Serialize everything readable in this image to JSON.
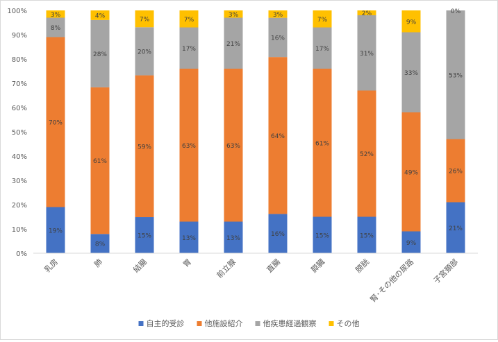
{
  "chart_data": {
    "type": "bar",
    "stacked": "percent",
    "categories": [
      "乳房",
      "肺",
      "結腸",
      "胃",
      "前立腺",
      "直腸",
      "膵臓",
      "膀胱",
      "腎･その他の尿路",
      "子宮頚部"
    ],
    "series": [
      {
        "name": "自主的受診",
        "color": "#4472c4",
        "values": [
          19,
          8,
          15,
          13,
          13,
          16,
          15,
          15,
          9,
          21
        ],
        "labels": [
          "19%",
          "8%",
          "15%",
          "13%",
          "13%",
          "16%",
          "15%",
          "15%",
          "9%",
          "21%"
        ]
      },
      {
        "name": "他施設紹介",
        "color": "#ed7d31",
        "values": [
          70,
          61,
          59,
          63,
          63,
          64,
          61,
          52,
          49,
          26
        ],
        "labels": [
          "70%",
          "61%",
          "59%",
          "63%",
          "63%",
          "64%",
          "61%",
          "52%",
          "49%",
          "26%"
        ]
      },
      {
        "name": "他疾患経過観察",
        "color": "#a5a5a5",
        "values": [
          8,
          28,
          20,
          17,
          21,
          16,
          17,
          31,
          33,
          53
        ],
        "labels": [
          "8%",
          "28%",
          "20%",
          "17%",
          "21%",
          "16%",
          "17%",
          "31%",
          "33%",
          "53%"
        ]
      },
      {
        "name": "その他",
        "color": "#ffc000",
        "values": [
          3,
          4,
          7,
          7,
          3,
          3,
          7,
          2,
          9,
          0
        ],
        "labels": [
          "3%",
          "4%",
          "7%",
          "7%",
          "3%",
          "3%",
          "7%",
          "2%",
          "9%",
          "0%"
        ]
      }
    ],
    "yticks": [
      "0%",
      "10%",
      "20%",
      "30%",
      "40%",
      "50%",
      "60%",
      "70%",
      "80%",
      "90%",
      "100%"
    ],
    "ylim": [
      0,
      100
    ],
    "grid": false,
    "legend_position": "bottom"
  }
}
